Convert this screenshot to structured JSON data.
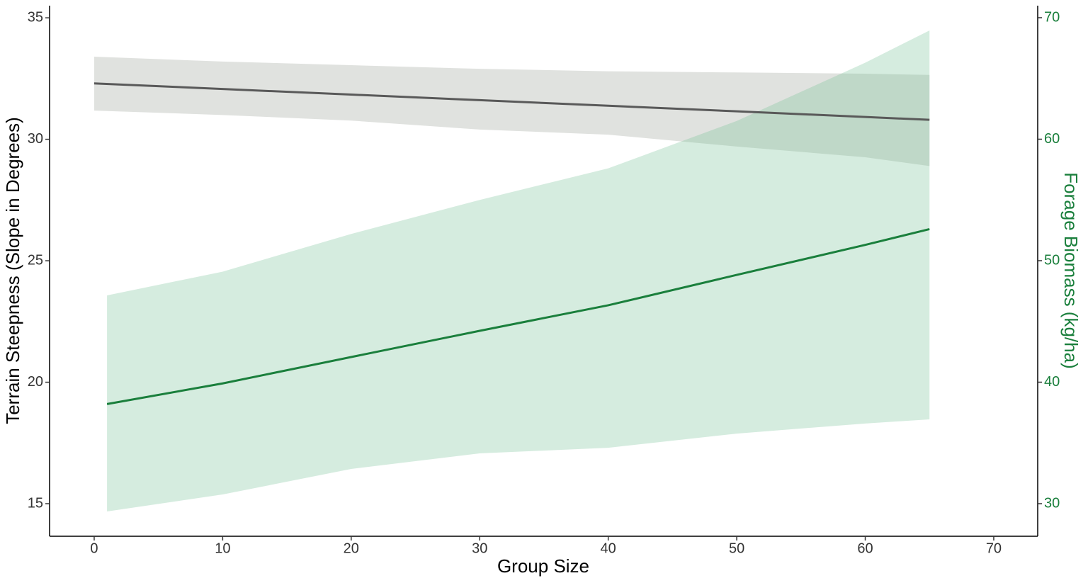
{
  "chart_data": {
    "type": "line",
    "x_label": "Group Size",
    "y_label": "Terrain Steepness (Slope in Degrees)",
    "y2_label": "Forage Biomass (kg/ha)",
    "xlim": [
      -3.47,
      73.42
    ],
    "xticks": [
      0,
      10,
      20,
      30,
      40,
      50,
      60,
      70
    ],
    "ylim": [
      13.66,
      35.5
    ],
    "yticks": [
      15,
      20,
      25,
      30,
      35
    ],
    "y2lim": [
      27.32,
      70.99
    ],
    "y2ticks": [
      30,
      40,
      50,
      60,
      70
    ],
    "y2_color": "#1a7f3c",
    "grid": false,
    "series": [
      {
        "name": "Terrain Steepness",
        "color": "#595959",
        "band_color": "#e0e2df",
        "band_opacity": 1,
        "x": [
          0,
          10,
          20,
          30,
          40,
          50,
          60,
          65
        ],
        "values": [
          32.3,
          32.07,
          31.84,
          31.61,
          31.38,
          31.15,
          30.92,
          30.8
        ],
        "upper": [
          33.4,
          33.2,
          33.05,
          32.9,
          32.8,
          32.75,
          32.7,
          32.65
        ],
        "lower": [
          31.18,
          31.0,
          30.77,
          30.4,
          30.19,
          29.7,
          29.26,
          28.9
        ]
      },
      {
        "name": "Forage Biomass",
        "color": "#1a7f3c",
        "band_color": "#74c195",
        "band_opacity": 0.3,
        "axis": "y2",
        "x": [
          1,
          10,
          20,
          30,
          40,
          50,
          60,
          65
        ],
        "values": [
          38.2,
          39.9,
          42.07,
          44.23,
          46.33,
          48.83,
          51.3,
          52.6
        ],
        "upper": [
          47.14,
          49.1,
          52.2,
          55.0,
          57.6,
          61.5,
          66.3,
          68.95
        ],
        "lower": [
          29.36,
          30.76,
          32.86,
          34.14,
          34.6,
          35.77,
          36.6,
          36.94
        ]
      }
    ]
  }
}
